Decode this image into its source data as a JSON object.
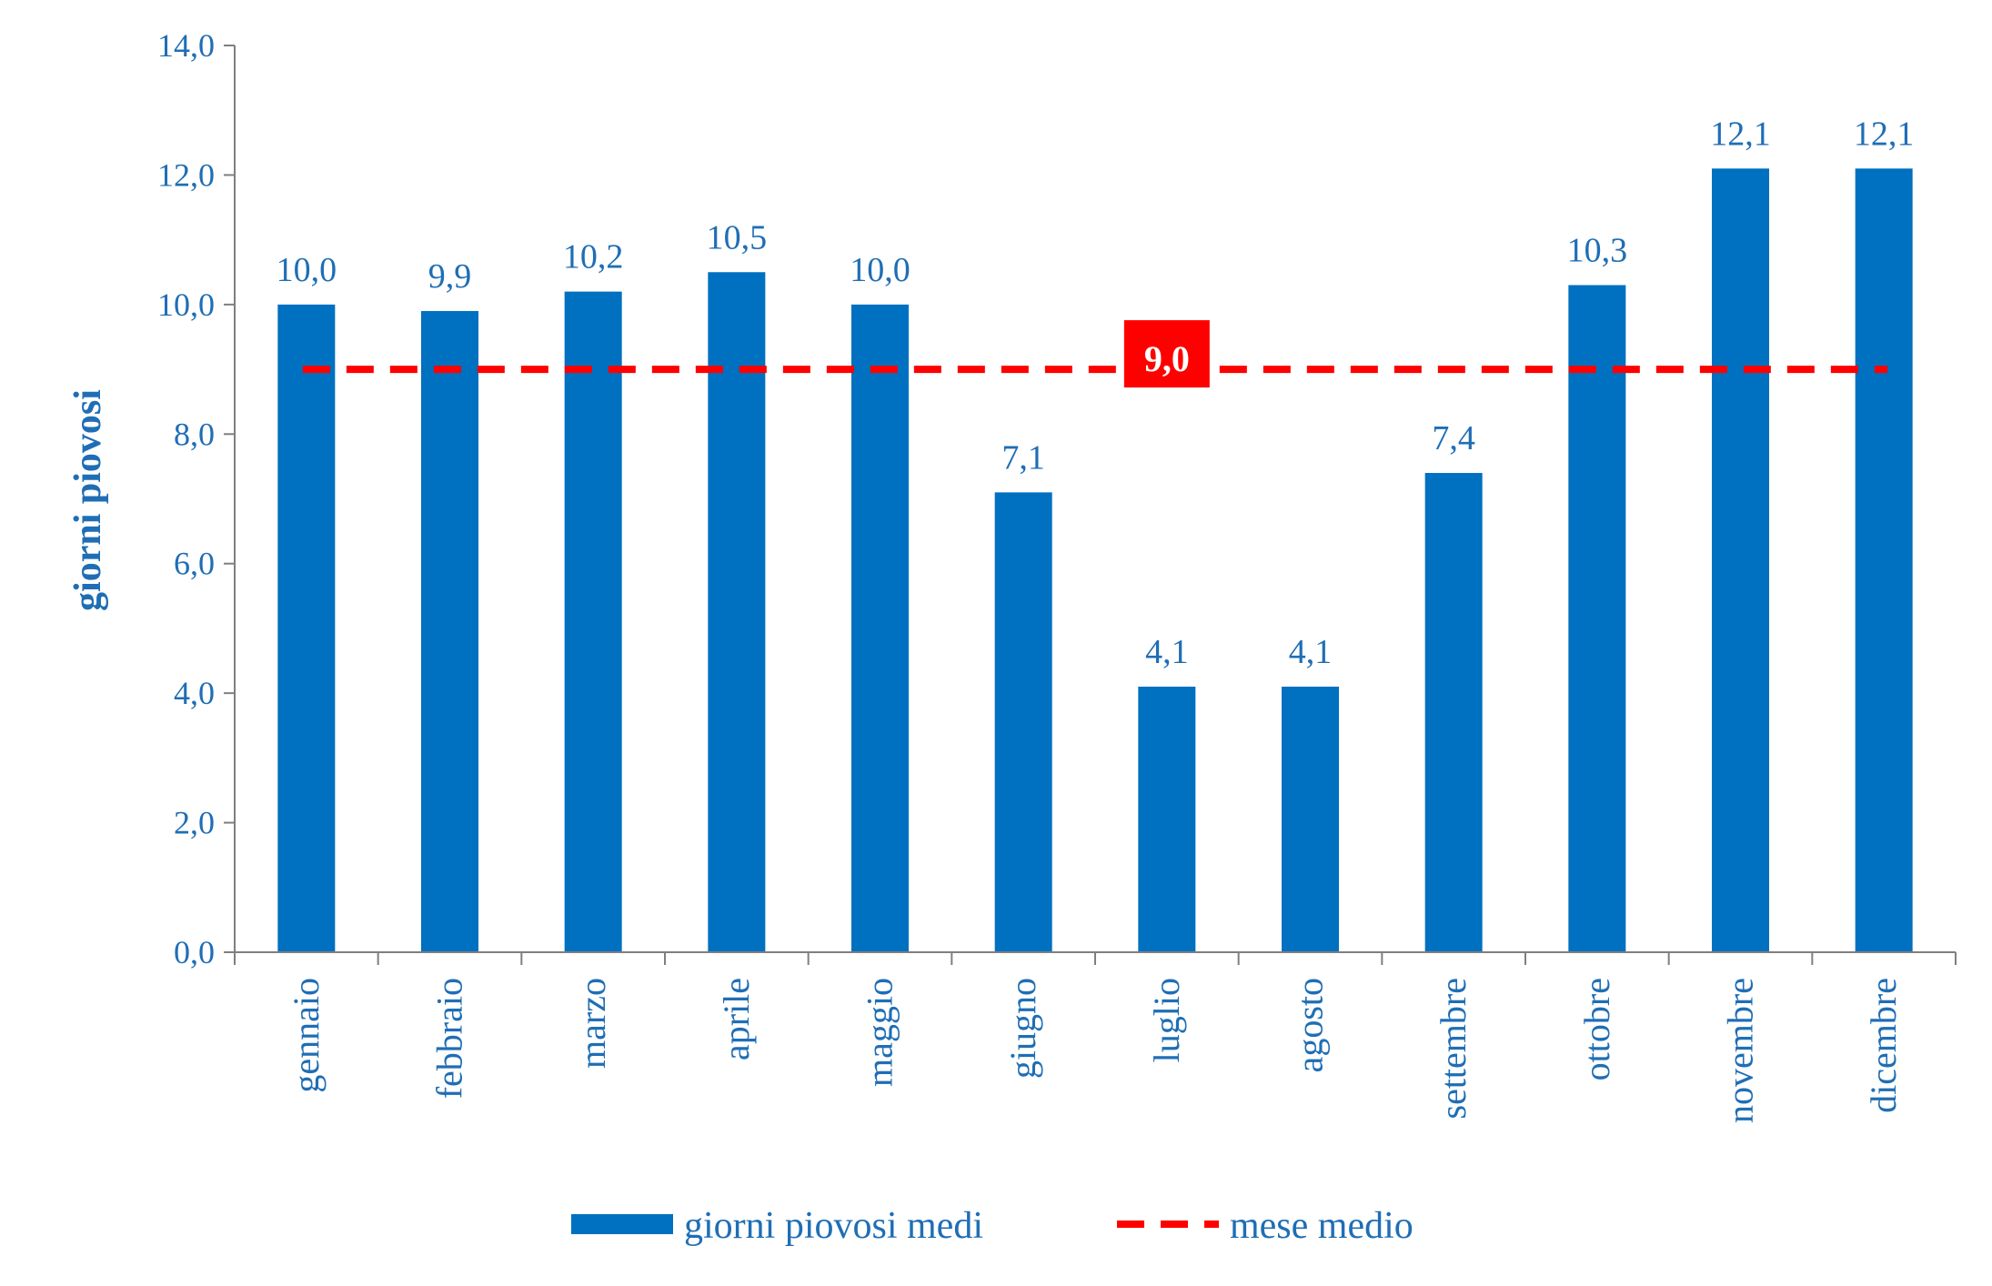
{
  "chart_data": {
    "type": "bar",
    "categories": [
      "gennaio",
      "febbraio",
      "marzo",
      "aprile",
      "maggio",
      "giugno",
      "luglio",
      "agosto",
      "settembre",
      "ottobre",
      "novembre",
      "dicembre"
    ],
    "series": [
      {
        "name": "giorni piovosi medi",
        "values": [
          10.0,
          9.9,
          10.2,
          10.5,
          10.0,
          7.1,
          4.1,
          4.1,
          7.4,
          10.3,
          12.1,
          12.1
        ],
        "labels": [
          "10,0",
          "9,9",
          "10,2",
          "10,5",
          "10,0",
          "7,1",
          "4,1",
          "4,1",
          "7,4",
          "10,3",
          "12,1",
          "12,1"
        ],
        "color": "#0070c0"
      }
    ],
    "reference_line": {
      "name": "mese medio",
      "value": 9.0,
      "label": "9,0",
      "color": "#ff0000"
    },
    "ylabel": "giorni piovosi",
    "xlabel": "",
    "ylim": [
      0,
      14
    ],
    "yticks": [
      0,
      2,
      4,
      6,
      8,
      10,
      12,
      14
    ],
    "ytick_labels": [
      "0,0",
      "2,0",
      "4,0",
      "6,0",
      "8,0",
      "10,0",
      "12,0",
      "14,0"
    ],
    "legend": {
      "position": "bottom",
      "entries": [
        "giorni piovosi medi",
        "mese medio"
      ]
    },
    "grid": false
  }
}
